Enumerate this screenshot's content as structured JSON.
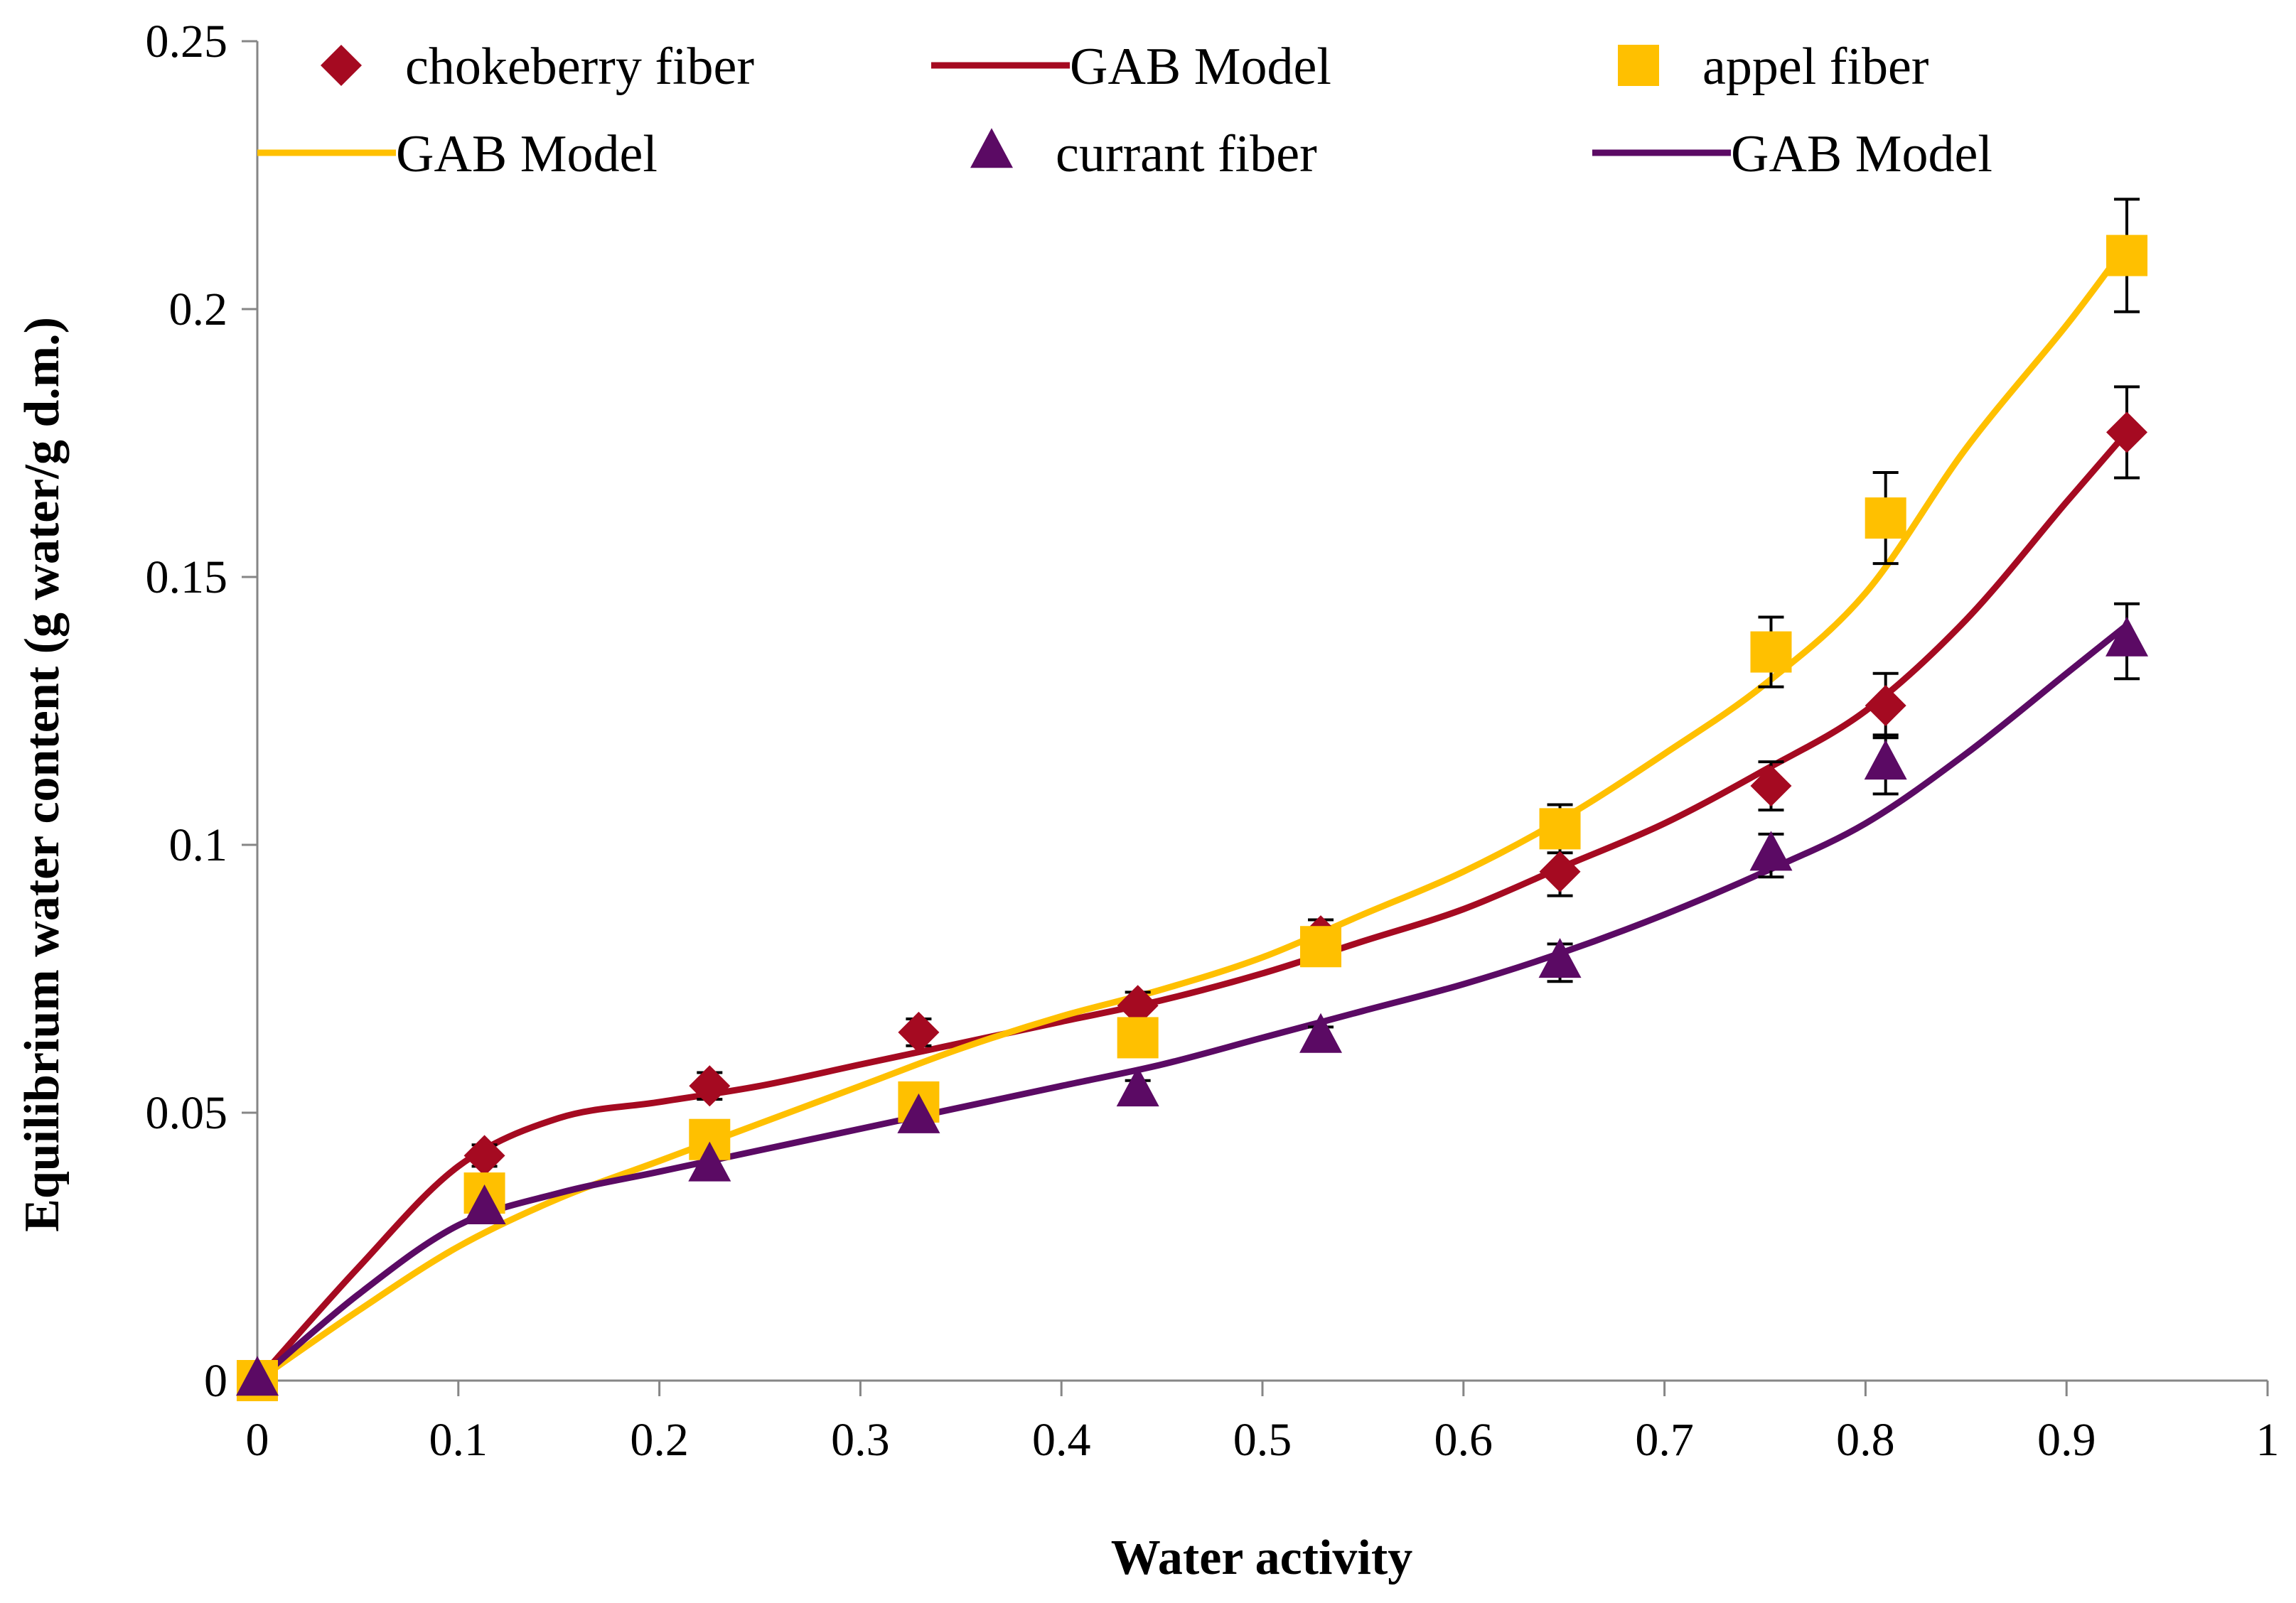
{
  "chart_data": {
    "type": "scatter",
    "title": "",
    "xlabel": "Water activity",
    "ylabel": "Equilibrium water content (g water/g d.m.)",
    "xlim": [
      0,
      1
    ],
    "ylim": [
      0,
      0.25
    ],
    "grid": false,
    "legend_position": "top",
    "x_ticks": [
      0,
      0.1,
      0.2,
      0.3,
      0.4,
      0.5,
      0.6,
      0.7,
      0.8,
      0.9,
      1
    ],
    "x_tick_labels": [
      "0",
      "0.1",
      "0.2",
      "0.3",
      "0.4",
      "0.5",
      "0.6",
      "0.7",
      "0.8",
      "0.9",
      "1"
    ],
    "y_ticks": [
      0,
      0.05,
      0.1,
      0.15,
      0.2,
      0.25
    ],
    "y_tick_labels": [
      "0",
      "0.05",
      "0.1",
      "0.15",
      "0.2",
      "0.25"
    ],
    "series": [
      {
        "name": "chokeberry fiber",
        "kind": "points",
        "marker": "diamond",
        "color": "#a50a21",
        "x": [
          0,
          0.113,
          0.225,
          0.329,
          0.438,
          0.529,
          0.648,
          0.753,
          0.81,
          0.93
        ],
        "y": [
          0,
          0.042,
          0.055,
          0.065,
          0.07,
          0.083,
          0.095,
          0.111,
          0.126,
          0.177
        ],
        "err": [
          0,
          0.002,
          0.0025,
          0.0025,
          0.0025,
          0.003,
          0.0045,
          0.0045,
          0.006,
          0.0085
        ]
      },
      {
        "name": "GAB Model",
        "kind": "line",
        "color": "#a50a21",
        "x": [
          0,
          0.05,
          0.1,
          0.15,
          0.2,
          0.25,
          0.3,
          0.35,
          0.4,
          0.45,
          0.5,
          0.55,
          0.6,
          0.65,
          0.7,
          0.75,
          0.8,
          0.85,
          0.9,
          0.93
        ],
        "y": [
          0,
          0.021,
          0.04,
          0.049,
          0.052,
          0.055,
          0.059,
          0.063,
          0.067,
          0.071,
          0.076,
          0.082,
          0.088,
          0.096,
          0.104,
          0.114,
          0.125,
          0.142,
          0.164,
          0.177
        ]
      },
      {
        "name": "appel fiber",
        "kind": "points",
        "marker": "square",
        "color": "#ffc000",
        "x": [
          0,
          0.113,
          0.225,
          0.329,
          0.438,
          0.529,
          0.648,
          0.753,
          0.81,
          0.93
        ],
        "y": [
          0,
          0.035,
          0.045,
          0.052,
          0.064,
          0.081,
          0.103,
          0.136,
          0.161,
          0.21
        ],
        "err": [
          0,
          0.0015,
          0.0015,
          0.0015,
          0.0015,
          0.003,
          0.0045,
          0.0065,
          0.0085,
          0.0105
        ]
      },
      {
        "name": "GAB Model",
        "kind": "line",
        "color": "#ffc000",
        "x": [
          0,
          0.05,
          0.1,
          0.15,
          0.2,
          0.25,
          0.3,
          0.35,
          0.4,
          0.45,
          0.5,
          0.55,
          0.6,
          0.65,
          0.7,
          0.75,
          0.8,
          0.85,
          0.9,
          0.93
        ],
        "y": [
          0,
          0.013,
          0.025,
          0.034,
          0.041,
          0.048,
          0.055,
          0.062,
          0.068,
          0.073,
          0.079,
          0.087,
          0.095,
          0.105,
          0.117,
          0.13,
          0.147,
          0.174,
          0.197,
          0.212
        ]
      },
      {
        "name": "currant fiber",
        "kind": "points",
        "marker": "triangle",
        "color": "#5b0a64",
        "x": [
          0,
          0.113,
          0.225,
          0.329,
          0.438,
          0.529,
          0.648,
          0.753,
          0.81,
          0.93
        ],
        "y": [
          0,
          0.032,
          0.04,
          0.049,
          0.054,
          0.064,
          0.078,
          0.098,
          0.115,
          0.138
        ],
        "err": [
          0,
          0.0015,
          0.0015,
          0.0015,
          0.002,
          0.002,
          0.0035,
          0.004,
          0.0055,
          0.007
        ]
      },
      {
        "name": "GAB Model",
        "kind": "line",
        "color": "#5b0a64",
        "x": [
          0,
          0.05,
          0.1,
          0.15,
          0.2,
          0.25,
          0.3,
          0.35,
          0.4,
          0.45,
          0.5,
          0.55,
          0.6,
          0.65,
          0.7,
          0.75,
          0.8,
          0.85,
          0.9,
          0.93
        ],
        "y": [
          0,
          0.016,
          0.029,
          0.035,
          0.039,
          0.043,
          0.047,
          0.051,
          0.055,
          0.059,
          0.064,
          0.069,
          0.074,
          0.08,
          0.087,
          0.095,
          0.104,
          0.117,
          0.132,
          0.141
        ]
      }
    ]
  }
}
